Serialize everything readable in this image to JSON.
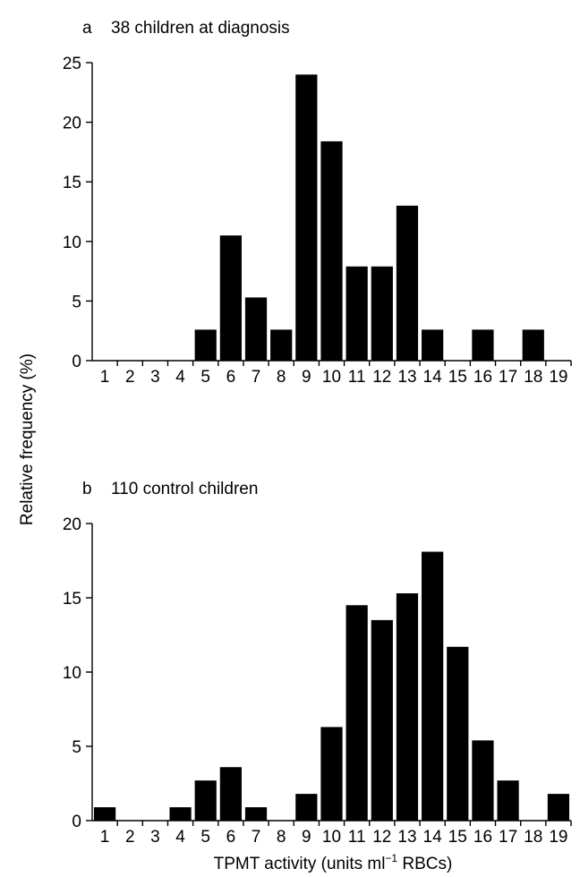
{
  "figure": {
    "ylabel": "Relative frequency (%)",
    "xlabel_main": "TPMT activity (units ml",
    "xlabel_sup": "−1",
    "xlabel_tail": " RBCs)"
  },
  "chart_data": [
    {
      "type": "bar",
      "panel_letter": "a",
      "title": "38 children at diagnosis",
      "xlabel": "TPMT activity (units ml−1 RBCs)",
      "ylabel": "Relative frequency (%)",
      "categories": [
        "1",
        "2",
        "3",
        "4",
        "5",
        "6",
        "7",
        "8",
        "9",
        "10",
        "11",
        "12",
        "13",
        "14",
        "15",
        "16",
        "17",
        "18",
        "19"
      ],
      "values": [
        0,
        0,
        0,
        0,
        2.6,
        10.5,
        5.3,
        2.6,
        24.0,
        18.4,
        7.9,
        7.9,
        13.0,
        2.6,
        0,
        2.6,
        0,
        2.6,
        0
      ],
      "ylim": [
        0,
        25
      ],
      "yticks": [
        0,
        5,
        10,
        15,
        20,
        25
      ],
      "grid": false,
      "bar_color": "#000000"
    },
    {
      "type": "bar",
      "panel_letter": "b",
      "title": "110 control children",
      "xlabel": "TPMT activity (units ml−1 RBCs)",
      "ylabel": "Relative frequency (%)",
      "categories": [
        "1",
        "2",
        "3",
        "4",
        "5",
        "6",
        "7",
        "8",
        "9",
        "10",
        "11",
        "12",
        "13",
        "14",
        "15",
        "16",
        "17",
        "18",
        "19"
      ],
      "values": [
        0.9,
        0,
        0,
        0.9,
        2.7,
        3.6,
        0.9,
        0,
        1.8,
        6.3,
        14.5,
        13.5,
        15.3,
        18.1,
        11.7,
        5.4,
        2.7,
        0,
        1.8
      ],
      "ylim": [
        0,
        20
      ],
      "yticks": [
        0,
        5,
        10,
        15,
        20
      ],
      "grid": false,
      "bar_color": "#000000"
    }
  ]
}
